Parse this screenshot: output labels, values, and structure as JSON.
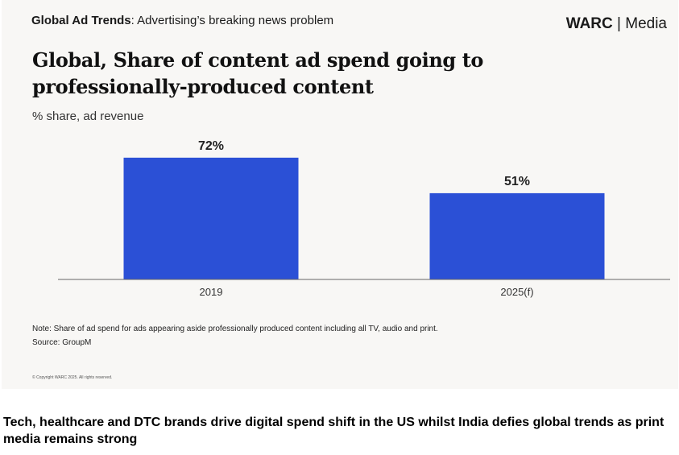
{
  "header": {
    "series_name": "Global Ad Trends",
    "series_suffix": ": Advertising’s breaking news problem",
    "brand_bold": "WARC",
    "brand_separator": " | ",
    "brand_rest": "Media"
  },
  "chart_data": {
    "type": "bar",
    "title": "Global, Share of content ad spend going to professionally-produced content",
    "subtitle": "% share, ad revenue",
    "categories": [
      "2019",
      "2025(f)"
    ],
    "values": [
      72,
      51
    ],
    "data_labels": [
      "72%",
      "51%"
    ],
    "ylabel": "",
    "xlabel": "",
    "ylim": [
      0,
      100
    ],
    "bar_color": "#2b50d6",
    "grid": false
  },
  "footer": {
    "note": "Note: Share of ad spend for ads appearing aside professionally produced content including all TV, audio and print.",
    "source": "Source: GroupM",
    "copyright": "© Copyright WARC 2025. All rights reserved."
  },
  "caption": "Tech, healthcare and DTC brands drive digital spend shift in the US whilst India defies global trends as print media remains strong"
}
